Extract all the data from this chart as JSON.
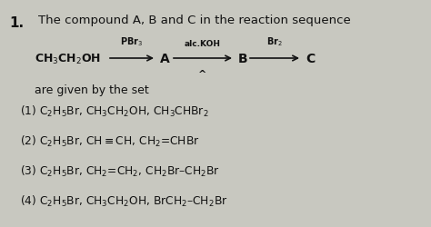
{
  "background_color": "#c8c8c0",
  "text_color": "#111111",
  "figsize": [
    4.74,
    2.51
  ],
  "dpi": 100,
  "q_num": "1.",
  "title": "The compound A, B and C in the reaction sequence",
  "rxn_start": "CH$_3$CH$_2$OH",
  "over1": "PBr$_3$",
  "labelA": "A",
  "over2": "alc.KOH",
  "under2": "^",
  "labelB": "B",
  "over3": "Br$_2$",
  "labelC": "C",
  "given_text": "are given by the set",
  "opt1": "(1) C$_2$H$_5$Br, CH$_3$CH$_2$OH, CH$_3$CHBr$_2$",
  "opt2": "(2) C$_2$H$_5$Br, CH$\\equiv$CH, CH$_2$=CHBr",
  "opt3": "(3) C$_2$H$_5$Br, CH$_2$=CH$_2$, CH$_2$Br–CH$_2$Br",
  "opt4": "(4) C$_2$H$_5$Br, CH$_3$CH$_2$OH, BrCH$_2$–CH$_2$Br"
}
